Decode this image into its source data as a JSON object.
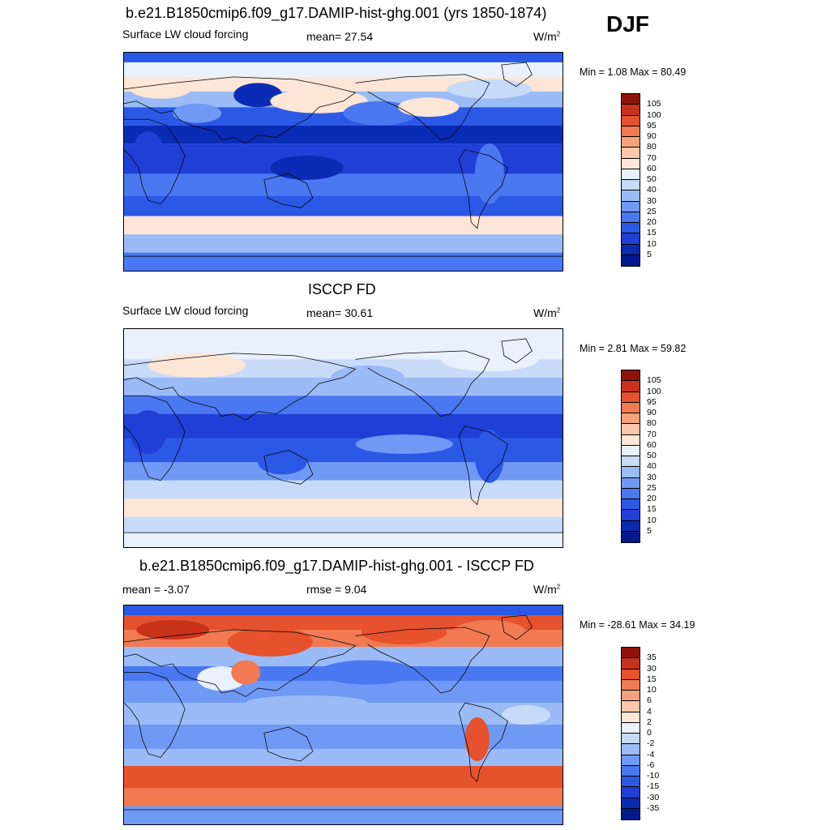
{
  "season": "DJF",
  "units_main": "W/m",
  "units_sup": "2",
  "palette_model": [
    "#001a8c",
    "#0a2bb3",
    "#1f3fd6",
    "#2b59e6",
    "#4a78f0",
    "#7099f5",
    "#9bbbf7",
    "#c7dbf9",
    "#e8f1fc",
    "#fde6d6",
    "#fcc7ab",
    "#f7a07c",
    "#f17a52",
    "#e6512e",
    "#c8321a",
    "#8f1208"
  ],
  "palette_diff": [
    "#001a8c",
    "#0a2bb3",
    "#1f3fd6",
    "#2b59e6",
    "#4a78f0",
    "#7099f5",
    "#9bbbf7",
    "#c7dbf9",
    "#e8f1fc",
    "#fde6d6",
    "#fcc7ab",
    "#f7a07c",
    "#f17a52",
    "#e6512e",
    "#c8321a",
    "#8f1208"
  ],
  "panel1": {
    "title": "b.e21.B1850cmip6.f09_g17.DAMIP-hist-ghg.001 (yrs 1850-1874)",
    "variable": "Surface LW cloud forcing",
    "mean_label": "mean=  27.54",
    "minmax": "Min =   1.08 Max =  80.49"
  },
  "panel2": {
    "title": "ISCCP FD",
    "variable": "Surface LW cloud forcing",
    "mean_label": "mean=  30.61",
    "minmax": "Min =   2.81 Max =  59.82"
  },
  "panel3": {
    "title": "b.e21.B1850cmip6.f09_g17.DAMIP-hist-ghg.001 - ISCCP FD",
    "mean_label": "mean =  -3.07",
    "rmse_label": "rmse =   9.04",
    "minmax": "Min = -28.61 Max =  34.19"
  },
  "chart_data": [
    {
      "type": "heatmap",
      "title": "b.e21.B1850cmip6.f09_g17.DAMIP-hist-ghg.001 (yrs 1850-1874)",
      "variable": "Surface LW cloud forcing",
      "units": "W/m2",
      "mean": 27.54,
      "min": 1.08,
      "max": 80.49,
      "colorbar_levels": [
        105,
        100,
        95,
        90,
        80,
        70,
        60,
        50,
        40,
        30,
        25,
        20,
        15,
        10,
        5
      ]
    },
    {
      "type": "heatmap",
      "title": "ISCCP FD",
      "variable": "Surface LW cloud forcing",
      "units": "W/m2",
      "mean": 30.61,
      "min": 2.81,
      "max": 59.82,
      "colorbar_levels": [
        105,
        100,
        95,
        90,
        80,
        70,
        60,
        50,
        40,
        30,
        25,
        20,
        15,
        10,
        5
      ]
    },
    {
      "type": "heatmap",
      "title": "b.e21.B1850cmip6.f09_g17.DAMIP-hist-ghg.001 - ISCCP FD",
      "units": "W/m2",
      "mean": -3.07,
      "rmse": 9.04,
      "min": -28.61,
      "max": 34.19,
      "colorbar_levels": [
        "35",
        "30",
        "15",
        "10",
        "6",
        "4",
        "2",
        "0",
        "-2",
        "-4",
        "-6",
        "-10",
        "-15",
        "-30",
        "-35"
      ]
    }
  ]
}
